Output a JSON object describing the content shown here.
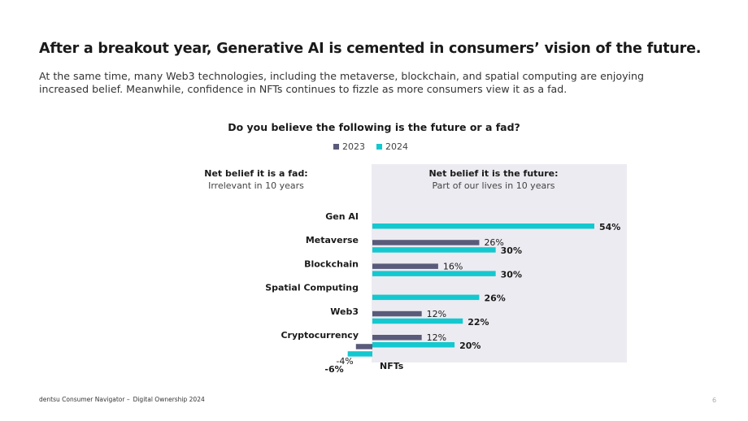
{
  "headline": "After a breakout year, Generative AI is cemented in consumers’ vision of the future.",
  "subtext_line1": "At the same time, many Web3 technologies, including the metaverse, blockchain, and spatial computing are enjoying",
  "subtext_line2": "increased belief. Meanwhile, confidence in NFTs continues to fizzle as more consumers view it as a fad.",
  "headers": {
    "fad_title": "Net belief it is a fad:",
    "fad_sub": "Irrelevant in 10 years",
    "future_title": "Net belief it is the future:",
    "future_sub": "Part of our lives in 10 years"
  },
  "colors": {
    "2023": "#5a5b7a",
    "2024": "#14c8cf",
    "panel": "#ecebf1"
  },
  "chart_data": {
    "type": "bar",
    "orientation": "horizontal",
    "title": "Do you believe the following is the future or a fad?",
    "categories": [
      "Gen AI",
      "Metaverse",
      "Blockchain",
      "Spatial Computing",
      "Web3",
      "Cryptocurrency",
      "NFTs"
    ],
    "series": [
      {
        "name": "2023",
        "values": [
          null,
          26,
          16,
          null,
          12,
          12,
          -4
        ]
      },
      {
        "name": "2024",
        "values": [
          54,
          30,
          30,
          26,
          22,
          20,
          -6
        ]
      }
    ],
    "value_format": "percent",
    "legend_position": "top-center"
  },
  "footer": {
    "source": "dentsu Consumer Navigator –",
    "report": "Digital Ownership 2024",
    "page": "6"
  }
}
